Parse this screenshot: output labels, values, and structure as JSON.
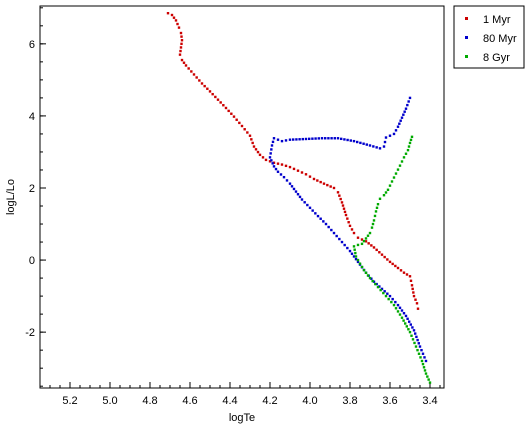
{
  "chart_data": {
    "type": "scatter",
    "title": "",
    "xlabel": "logTe",
    "ylabel": "logL/Lo",
    "xlim": [
      5.35,
      3.33
    ],
    "ylim": [
      -3.55,
      7.05
    ],
    "x_reversed": true,
    "x_ticks": [
      "5.2",
      "5.0",
      "4.8",
      "4.6",
      "4.4",
      "4.2",
      "4.0",
      "3.8",
      "3.6",
      "3.4"
    ],
    "y_ticks": [
      "-2",
      "0",
      "2",
      "4",
      "6"
    ],
    "grid": false,
    "legend_position": "top-right",
    "series": [
      {
        "name": "1 Myr",
        "color": "#cc0000",
        "points": [
          [
            4.71,
            6.85
          ],
          [
            4.69,
            6.8
          ],
          [
            4.67,
            6.65
          ],
          [
            4.655,
            6.45
          ],
          [
            4.645,
            6.3
          ],
          [
            4.64,
            6.1
          ],
          [
            4.645,
            5.9
          ],
          [
            4.65,
            5.7
          ],
          [
            4.64,
            5.55
          ],
          [
            4.62,
            5.4
          ],
          [
            4.58,
            5.15
          ],
          [
            4.54,
            4.9
          ],
          [
            4.5,
            4.68
          ],
          [
            4.46,
            4.45
          ],
          [
            4.42,
            4.22
          ],
          [
            4.38,
            3.98
          ],
          [
            4.34,
            3.72
          ],
          [
            4.3,
            3.45
          ],
          [
            4.28,
            3.15
          ],
          [
            4.25,
            2.92
          ],
          [
            4.22,
            2.78
          ],
          [
            4.18,
            2.7
          ],
          [
            4.14,
            2.65
          ],
          [
            4.1,
            2.58
          ],
          [
            4.06,
            2.48
          ],
          [
            4.02,
            2.38
          ],
          [
            3.98,
            2.25
          ],
          [
            3.93,
            2.12
          ],
          [
            3.88,
            2.0
          ],
          [
            3.86,
            1.88
          ],
          [
            3.84,
            1.6
          ],
          [
            3.82,
            1.25
          ],
          [
            3.8,
            0.95
          ],
          [
            3.78,
            0.75
          ],
          [
            3.76,
            0.62
          ],
          [
            3.72,
            0.52
          ],
          [
            3.68,
            0.35
          ],
          [
            3.64,
            0.15
          ],
          [
            3.6,
            -0.05
          ],
          [
            3.56,
            -0.22
          ],
          [
            3.53,
            -0.35
          ],
          [
            3.5,
            -0.45
          ],
          [
            3.49,
            -0.7
          ],
          [
            3.48,
            -1.0
          ],
          [
            3.465,
            -1.2
          ],
          [
            3.46,
            -1.35
          ]
        ]
      },
      {
        "name": "80 Myr",
        "color": "#0000cc",
        "points": [
          [
            3.5,
            4.5
          ],
          [
            3.52,
            4.2
          ],
          [
            3.54,
            3.95
          ],
          [
            3.56,
            3.7
          ],
          [
            3.58,
            3.5
          ],
          [
            3.62,
            3.4
          ],
          [
            3.63,
            3.15
          ],
          [
            3.65,
            3.1
          ],
          [
            3.7,
            3.18
          ],
          [
            3.78,
            3.3
          ],
          [
            3.86,
            3.38
          ],
          [
            3.94,
            3.38
          ],
          [
            4.02,
            3.36
          ],
          [
            4.1,
            3.34
          ],
          [
            4.14,
            3.3
          ],
          [
            4.18,
            3.38
          ],
          [
            4.19,
            3.18
          ],
          [
            4.2,
            2.85
          ],
          [
            4.18,
            2.6
          ],
          [
            4.16,
            2.45
          ],
          [
            4.13,
            2.3
          ],
          [
            4.1,
            2.12
          ],
          [
            4.07,
            1.9
          ],
          [
            4.04,
            1.68
          ],
          [
            4.0,
            1.45
          ],
          [
            3.96,
            1.22
          ],
          [
            3.92,
            1.0
          ],
          [
            3.88,
            0.75
          ],
          [
            3.84,
            0.5
          ],
          [
            3.8,
            0.25
          ],
          [
            3.76,
            -0.05
          ],
          [
            3.72,
            -0.35
          ],
          [
            3.68,
            -0.6
          ],
          [
            3.64,
            -0.8
          ],
          [
            3.6,
            -1.0
          ],
          [
            3.56,
            -1.25
          ],
          [
            3.52,
            -1.55
          ],
          [
            3.48,
            -1.95
          ],
          [
            3.45,
            -2.4
          ],
          [
            3.42,
            -2.8
          ]
        ]
      },
      {
        "name": "8 Gyr",
        "color": "#00aa00",
        "points": [
          [
            3.49,
            3.42
          ],
          [
            3.5,
            3.25
          ],
          [
            3.51,
            3.05
          ],
          [
            3.53,
            2.85
          ],
          [
            3.55,
            2.62
          ],
          [
            3.57,
            2.4
          ],
          [
            3.59,
            2.18
          ],
          [
            3.61,
            1.95
          ],
          [
            3.63,
            1.8
          ],
          [
            3.65,
            1.7
          ],
          [
            3.66,
            1.55
          ],
          [
            3.67,
            1.35
          ],
          [
            3.68,
            1.1
          ],
          [
            3.69,
            0.9
          ],
          [
            3.7,
            0.75
          ],
          [
            3.72,
            0.6
          ],
          [
            3.74,
            0.45
          ],
          [
            3.76,
            0.42
          ],
          [
            3.78,
            0.38
          ],
          [
            3.77,
            0.1
          ],
          [
            3.75,
            -0.1
          ],
          [
            3.73,
            -0.28
          ],
          [
            3.7,
            -0.5
          ],
          [
            3.66,
            -0.75
          ],
          [
            3.62,
            -1.0
          ],
          [
            3.58,
            -1.25
          ],
          [
            3.54,
            -1.6
          ],
          [
            3.5,
            -2.0
          ],
          [
            3.47,
            -2.4
          ],
          [
            3.44,
            -2.8
          ],
          [
            3.42,
            -3.15
          ],
          [
            3.4,
            -3.4
          ]
        ]
      }
    ]
  }
}
